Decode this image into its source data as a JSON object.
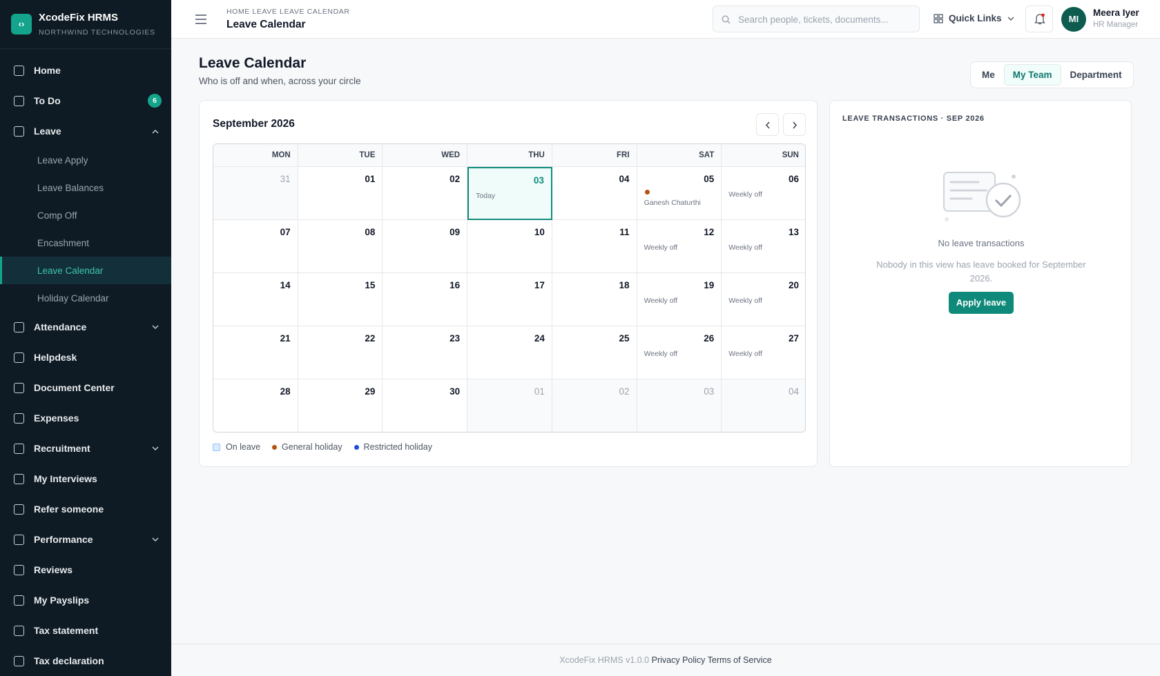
{
  "sidebar": {
    "brand": "XcodeFix HRMS",
    "org": "NORTHWIND TECHNOLOGIES",
    "nav": [
      {
        "label": "Home"
      },
      {
        "label": "To Do",
        "badge": 6
      },
      {
        "label": "Leave",
        "expandable": true,
        "expanded": true,
        "children": [
          {
            "label": "Leave Apply"
          },
          {
            "label": "Leave Balances"
          },
          {
            "label": "Comp Off"
          },
          {
            "label": "Encashment"
          },
          {
            "label": "Leave Calendar",
            "active": true
          },
          {
            "label": "Holiday Calendar"
          }
        ]
      },
      {
        "label": "Attendance",
        "expandable": true
      },
      {
        "label": "Helpdesk"
      },
      {
        "label": "Document Center"
      },
      {
        "label": "Expenses"
      },
      {
        "label": "Recruitment",
        "expandable": true
      },
      {
        "label": "My Interviews"
      },
      {
        "label": "Refer someone"
      },
      {
        "label": "Performance",
        "expandable": true
      },
      {
        "label": "Reviews"
      },
      {
        "label": "My Payslips"
      },
      {
        "label": "Tax statement"
      },
      {
        "label": "Tax declaration"
      }
    ]
  },
  "header": {
    "breadcrumb": "HOME LEAVE LEAVE CALENDAR",
    "title": "Leave Calendar",
    "search_placeholder": "Search people, tickets, documents...",
    "quick_links": "Quick Links",
    "user": {
      "initials": "MI",
      "name": "Meera Iyer",
      "role": "HR Manager"
    }
  },
  "page": {
    "title": "Leave Calendar",
    "subtitle": "Who is off and when, across your circle",
    "tabs": [
      {
        "label": "Me"
      },
      {
        "label": "My Team",
        "active": true
      },
      {
        "label": "Department"
      }
    ]
  },
  "calendar": {
    "month": "September 2026",
    "weekdays": [
      "MON",
      "TUE",
      "WED",
      "THU",
      "FRI",
      "SAT",
      "SUN"
    ],
    "weeks": [
      [
        {
          "day": "31",
          "outside": true
        },
        {
          "day": "01"
        },
        {
          "day": "02"
        },
        {
          "day": "03",
          "note": "Today",
          "today": true
        },
        {
          "day": "04"
        },
        {
          "day": "05",
          "note": "Ganesh Chaturthi",
          "dot_color": "#b4530f"
        },
        {
          "day": "06",
          "note": "Weekly off"
        }
      ],
      [
        {
          "day": "07"
        },
        {
          "day": "08"
        },
        {
          "day": "09"
        },
        {
          "day": "10"
        },
        {
          "day": "11"
        },
        {
          "day": "12",
          "note": "Weekly off"
        },
        {
          "day": "13",
          "note": "Weekly off"
        }
      ],
      [
        {
          "day": "14"
        },
        {
          "day": "15"
        },
        {
          "day": "16"
        },
        {
          "day": "17"
        },
        {
          "day": "18"
        },
        {
          "day": "19",
          "note": "Weekly off"
        },
        {
          "day": "20",
          "note": "Weekly off"
        }
      ],
      [
        {
          "day": "21"
        },
        {
          "day": "22"
        },
        {
          "day": "23"
        },
        {
          "day": "24"
        },
        {
          "day": "25"
        },
        {
          "day": "26",
          "note": "Weekly off"
        },
        {
          "day": "27",
          "note": "Weekly off"
        }
      ],
      [
        {
          "day": "28"
        },
        {
          "day": "29"
        },
        {
          "day": "30"
        },
        {
          "day": "01",
          "outside": true
        },
        {
          "day": "02",
          "outside": true
        },
        {
          "day": "03",
          "outside": true
        },
        {
          "day": "04",
          "outside": true
        }
      ]
    ],
    "legend": [
      {
        "label": "On leave",
        "color": "#dbeafe",
        "box": true
      },
      {
        "label": "General holiday",
        "color": "#b4530f"
      },
      {
        "label": "Restricted holiday",
        "color": "#1d4ed8"
      }
    ]
  },
  "transactions": {
    "title": "LEAVE TRANSACTIONS · SEP 2026",
    "empty_title": "No leave transactions",
    "empty_text": "Nobody in this view has leave booked for September 2026.",
    "button": "Apply leave"
  },
  "footer": {
    "version": "XcodeFix HRMS v1.0.0",
    "links": [
      "Privacy Policy",
      "Terms of Service"
    ]
  }
}
